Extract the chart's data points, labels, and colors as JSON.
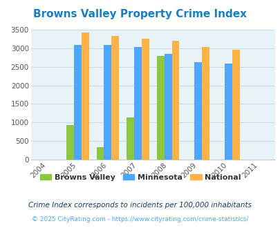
{
  "title": "Browns Valley Property Crime Index",
  "years": [
    2004,
    2005,
    2006,
    2007,
    2008,
    2009,
    2010,
    2011
  ],
  "categories": [
    "Browns Valley",
    "Minnesota",
    "National"
  ],
  "values": {
    "Browns Valley": [
      null,
      930,
      330,
      1130,
      2800,
      null,
      null,
      null
    ],
    "Minnesota": [
      null,
      3080,
      3080,
      3040,
      2840,
      2630,
      2580,
      null
    ],
    "National": [
      null,
      3430,
      3330,
      3260,
      3200,
      3040,
      2950,
      null
    ]
  },
  "colors": {
    "Browns Valley": "#8dc63f",
    "Minnesota": "#4da6ff",
    "National": "#ffb347"
  },
  "ylim": [
    0,
    3500
  ],
  "yticks": [
    0,
    500,
    1000,
    1500,
    2000,
    2500,
    3000,
    3500
  ],
  "bg_color": "#e8f4f8",
  "grid_color": "#c8dde8",
  "title_color": "#1a7fc1",
  "legend_text_color": "#333333",
  "subtitle": "Crime Index corresponds to incidents per 100,000 inhabitants",
  "footer": "© 2025 CityRating.com - https://www.cityrating.com/crime-statistics/",
  "footer_color": "#4da6ff",
  "subtitle_color": "#1a3a5c",
  "bar_width": 0.25
}
